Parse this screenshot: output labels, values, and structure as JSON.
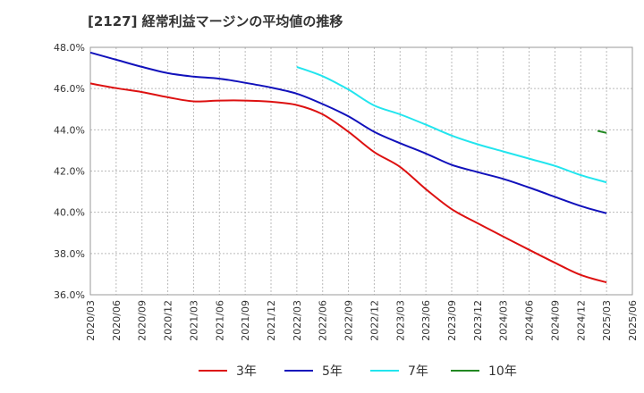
{
  "chart_data": {
    "type": "line",
    "title": "[2127]  経常利益マージンの平均値の推移",
    "x": [
      "2020/03",
      "2020/06",
      "2020/09",
      "2020/12",
      "2021/03",
      "2021/06",
      "2021/09",
      "2021/12",
      "2022/03",
      "2022/06",
      "2022/09",
      "2022/12",
      "2023/03",
      "2023/06",
      "2023/09",
      "2023/12",
      "2024/03",
      "2024/06",
      "2024/09",
      "2024/12",
      "2025/03",
      "2025/06"
    ],
    "ylim": [
      36.0,
      48.0
    ],
    "yticks": [
      "36.0%",
      "38.0%",
      "40.0%",
      "42.0%",
      "44.0%",
      "46.0%",
      "48.0%"
    ],
    "grid": true,
    "legend_position": "bottom",
    "series": [
      {
        "name": "3年",
        "color": "#dd1111",
        "values": [
          46.25,
          46.02,
          45.83,
          45.58,
          45.38,
          45.42,
          45.42,
          45.36,
          45.2,
          44.75,
          43.9,
          42.92,
          42.2,
          41.12,
          40.15,
          39.47,
          38.82,
          38.18,
          37.55,
          36.96,
          36.6,
          null
        ]
      },
      {
        "name": "5年",
        "color": "#1111bb",
        "values": [
          47.75,
          47.4,
          47.05,
          46.75,
          46.58,
          46.48,
          46.28,
          46.05,
          45.75,
          45.25,
          44.65,
          43.9,
          43.35,
          42.85,
          42.3,
          41.95,
          41.62,
          41.2,
          40.75,
          40.3,
          39.95,
          null
        ]
      },
      {
        "name": "7年",
        "color": "#22e5ee",
        "values": [
          null,
          null,
          null,
          null,
          null,
          null,
          null,
          null,
          47.05,
          46.6,
          45.95,
          45.18,
          44.75,
          44.25,
          43.72,
          43.3,
          42.95,
          42.6,
          42.25,
          41.8,
          41.45,
          null
        ]
      },
      {
        "name": "10年",
        "color": "#228822",
        "values": [
          null,
          null,
          null,
          null,
          null,
          null,
          null,
          null,
          null,
          null,
          null,
          null,
          null,
          null,
          null,
          null,
          null,
          null,
          null,
          null,
          43.85,
          null
        ],
        "segment_start": 43.95
      }
    ]
  }
}
